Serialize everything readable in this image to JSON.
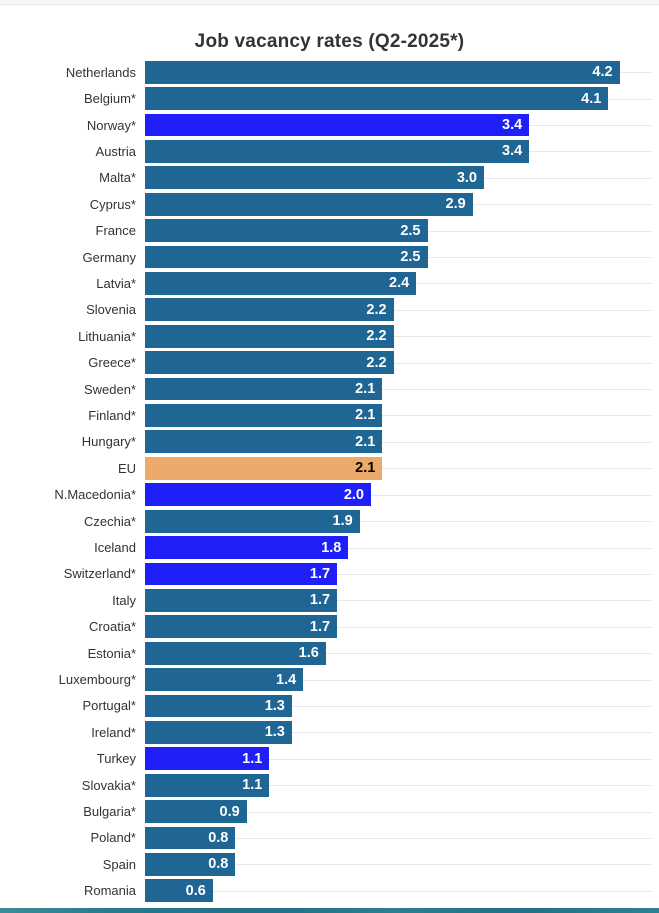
{
  "title": "Job vacancy rates (Q2-2025*)",
  "colors": {
    "eu_member_bar": "#1f6695",
    "non_eu_country_bar": "#1f1ffa",
    "eu_aggregate_bar": "#ebaa6a",
    "value_label_text": "#ffffff",
    "eu_value_label_text": "#000000",
    "category_label_text": "#333333",
    "gridline": "#e7e7e7",
    "title_text": "#333333",
    "bottom_edge_strip": "#27798b"
  },
  "chart_data": {
    "type": "bar",
    "orientation": "horizontal",
    "title": "Job vacancy rates (Q2-2025*)",
    "xlabel": "",
    "ylabel": "",
    "xlim": [
      0,
      4.55
    ],
    "grid": true,
    "legend": "none",
    "value_format": "one-decimal",
    "categories": [
      "Netherlands",
      "Belgium*",
      "Norway*",
      "Austria",
      "Malta*",
      "Cyprus*",
      "France",
      "Germany",
      "Latvia*",
      "Slovenia",
      "Lithuania*",
      "Greece*",
      "Sweden*",
      "Finland*",
      "Hungary*",
      "EU",
      "N.Macedonia*",
      "Czechia*",
      "Iceland",
      "Switzerland*",
      "Italy",
      "Croatia*",
      "Estonia*",
      "Luxembourg*",
      "Portugal*",
      "Ireland*",
      "Turkey",
      "Slovakia*",
      "Bulgaria*",
      "Poland*",
      "Spain",
      "Romania"
    ],
    "values": [
      4.2,
      4.1,
      3.4,
      3.4,
      3.0,
      2.9,
      2.5,
      2.5,
      2.4,
      2.2,
      2.2,
      2.2,
      2.1,
      2.1,
      2.1,
      2.1,
      2.0,
      1.9,
      1.8,
      1.7,
      1.7,
      1.7,
      1.6,
      1.4,
      1.3,
      1.3,
      1.1,
      1.1,
      0.9,
      0.8,
      0.8,
      0.6
    ],
    "groups": [
      "member",
      "member",
      "non_eu",
      "member",
      "member",
      "member",
      "member",
      "member",
      "member",
      "member",
      "member",
      "member",
      "member",
      "member",
      "member",
      "eu",
      "non_eu",
      "member",
      "non_eu",
      "non_eu",
      "member",
      "member",
      "member",
      "member",
      "member",
      "member",
      "non_eu",
      "member",
      "member",
      "member",
      "member",
      "member"
    ],
    "group_meaning": {
      "member": "EU member state (teal bar)",
      "non_eu": "Non-EU country (bright blue bar)",
      "eu": "EU aggregate (orange bar, black value label)"
    }
  }
}
